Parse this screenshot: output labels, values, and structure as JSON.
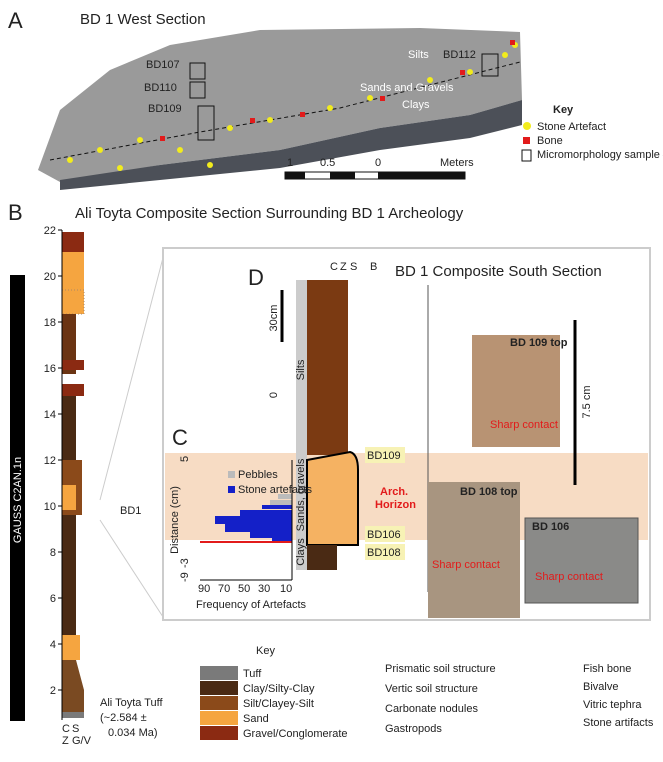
{
  "panel_a": {
    "letter": "A",
    "title": "BD 1 West Section",
    "samples": [
      "BD107",
      "BD110",
      "BD109",
      "BD112"
    ],
    "units": [
      "Silts",
      "Sands and Gravels",
      "Clays"
    ],
    "key": {
      "title": "Key",
      "items": [
        "Stone Artefact",
        "Bone",
        "Micromorphology sample #"
      ]
    },
    "scale": [
      "1",
      "0.5",
      "0",
      "Meters"
    ]
  },
  "panel_b": {
    "letter": "B",
    "title": "Ali Toyta Composite Section Surrounding BD 1 Archeology",
    "chron": "GAUSS C2AN.1n",
    "depth_ticks": [
      2,
      4,
      6,
      8,
      10,
      12,
      14,
      16,
      18,
      20,
      22
    ],
    "bottom_labels": [
      "C",
      "S",
      "Z",
      "G/V"
    ],
    "site": "BD1",
    "tuff": [
      "Ali Toyta Tuff",
      "(~2.584 ±",
      "0.034 Ma)"
    ]
  },
  "panel_d": {
    "letter": "D",
    "title": "BD 1 Composite South Section",
    "top_labels": [
      "C",
      "Z",
      "S",
      "B"
    ],
    "scale": [
      "30cm",
      "0"
    ],
    "units": [
      "Silts",
      "Sands, gravels",
      "Clays"
    ],
    "samples": [
      "BD109",
      "BD106",
      "BD108"
    ],
    "horizon": [
      "Arch.",
      "Horizon"
    ],
    "photos": [
      {
        "label": "BD 109 top",
        "note": "Sharp contact"
      },
      {
        "label": "BD 108 top",
        "note": "Sharp contact"
      },
      {
        "label": "BD 106",
        "note": "Sharp contact"
      }
    ],
    "photo_scale": "7.5 cm"
  },
  "panel_c": {
    "letter": "C",
    "legend": [
      "Pebbles",
      "Stone artefacts"
    ],
    "y_label": "Distance (cm)",
    "y_ticks": [
      "5",
      "-3",
      "-9"
    ],
    "x_ticks": [
      "90",
      "70",
      "50",
      "30",
      "10"
    ],
    "x_label": "Frequency of Artefacts"
  },
  "key": {
    "title": "Key",
    "lithology": [
      "Tuff",
      "Clay/Silty-Clay",
      "Silt/Clayey-Silt",
      "Sand",
      "Gravel/Conglomerate"
    ],
    "structures": [
      "Prismatic soil structure",
      "Vertic soil structure",
      "Carbonate nodules",
      "Gastropods"
    ],
    "fossils": [
      "Fish bone",
      "Bivalve",
      "Vitric tephra",
      "Stone artifacts"
    ]
  }
}
